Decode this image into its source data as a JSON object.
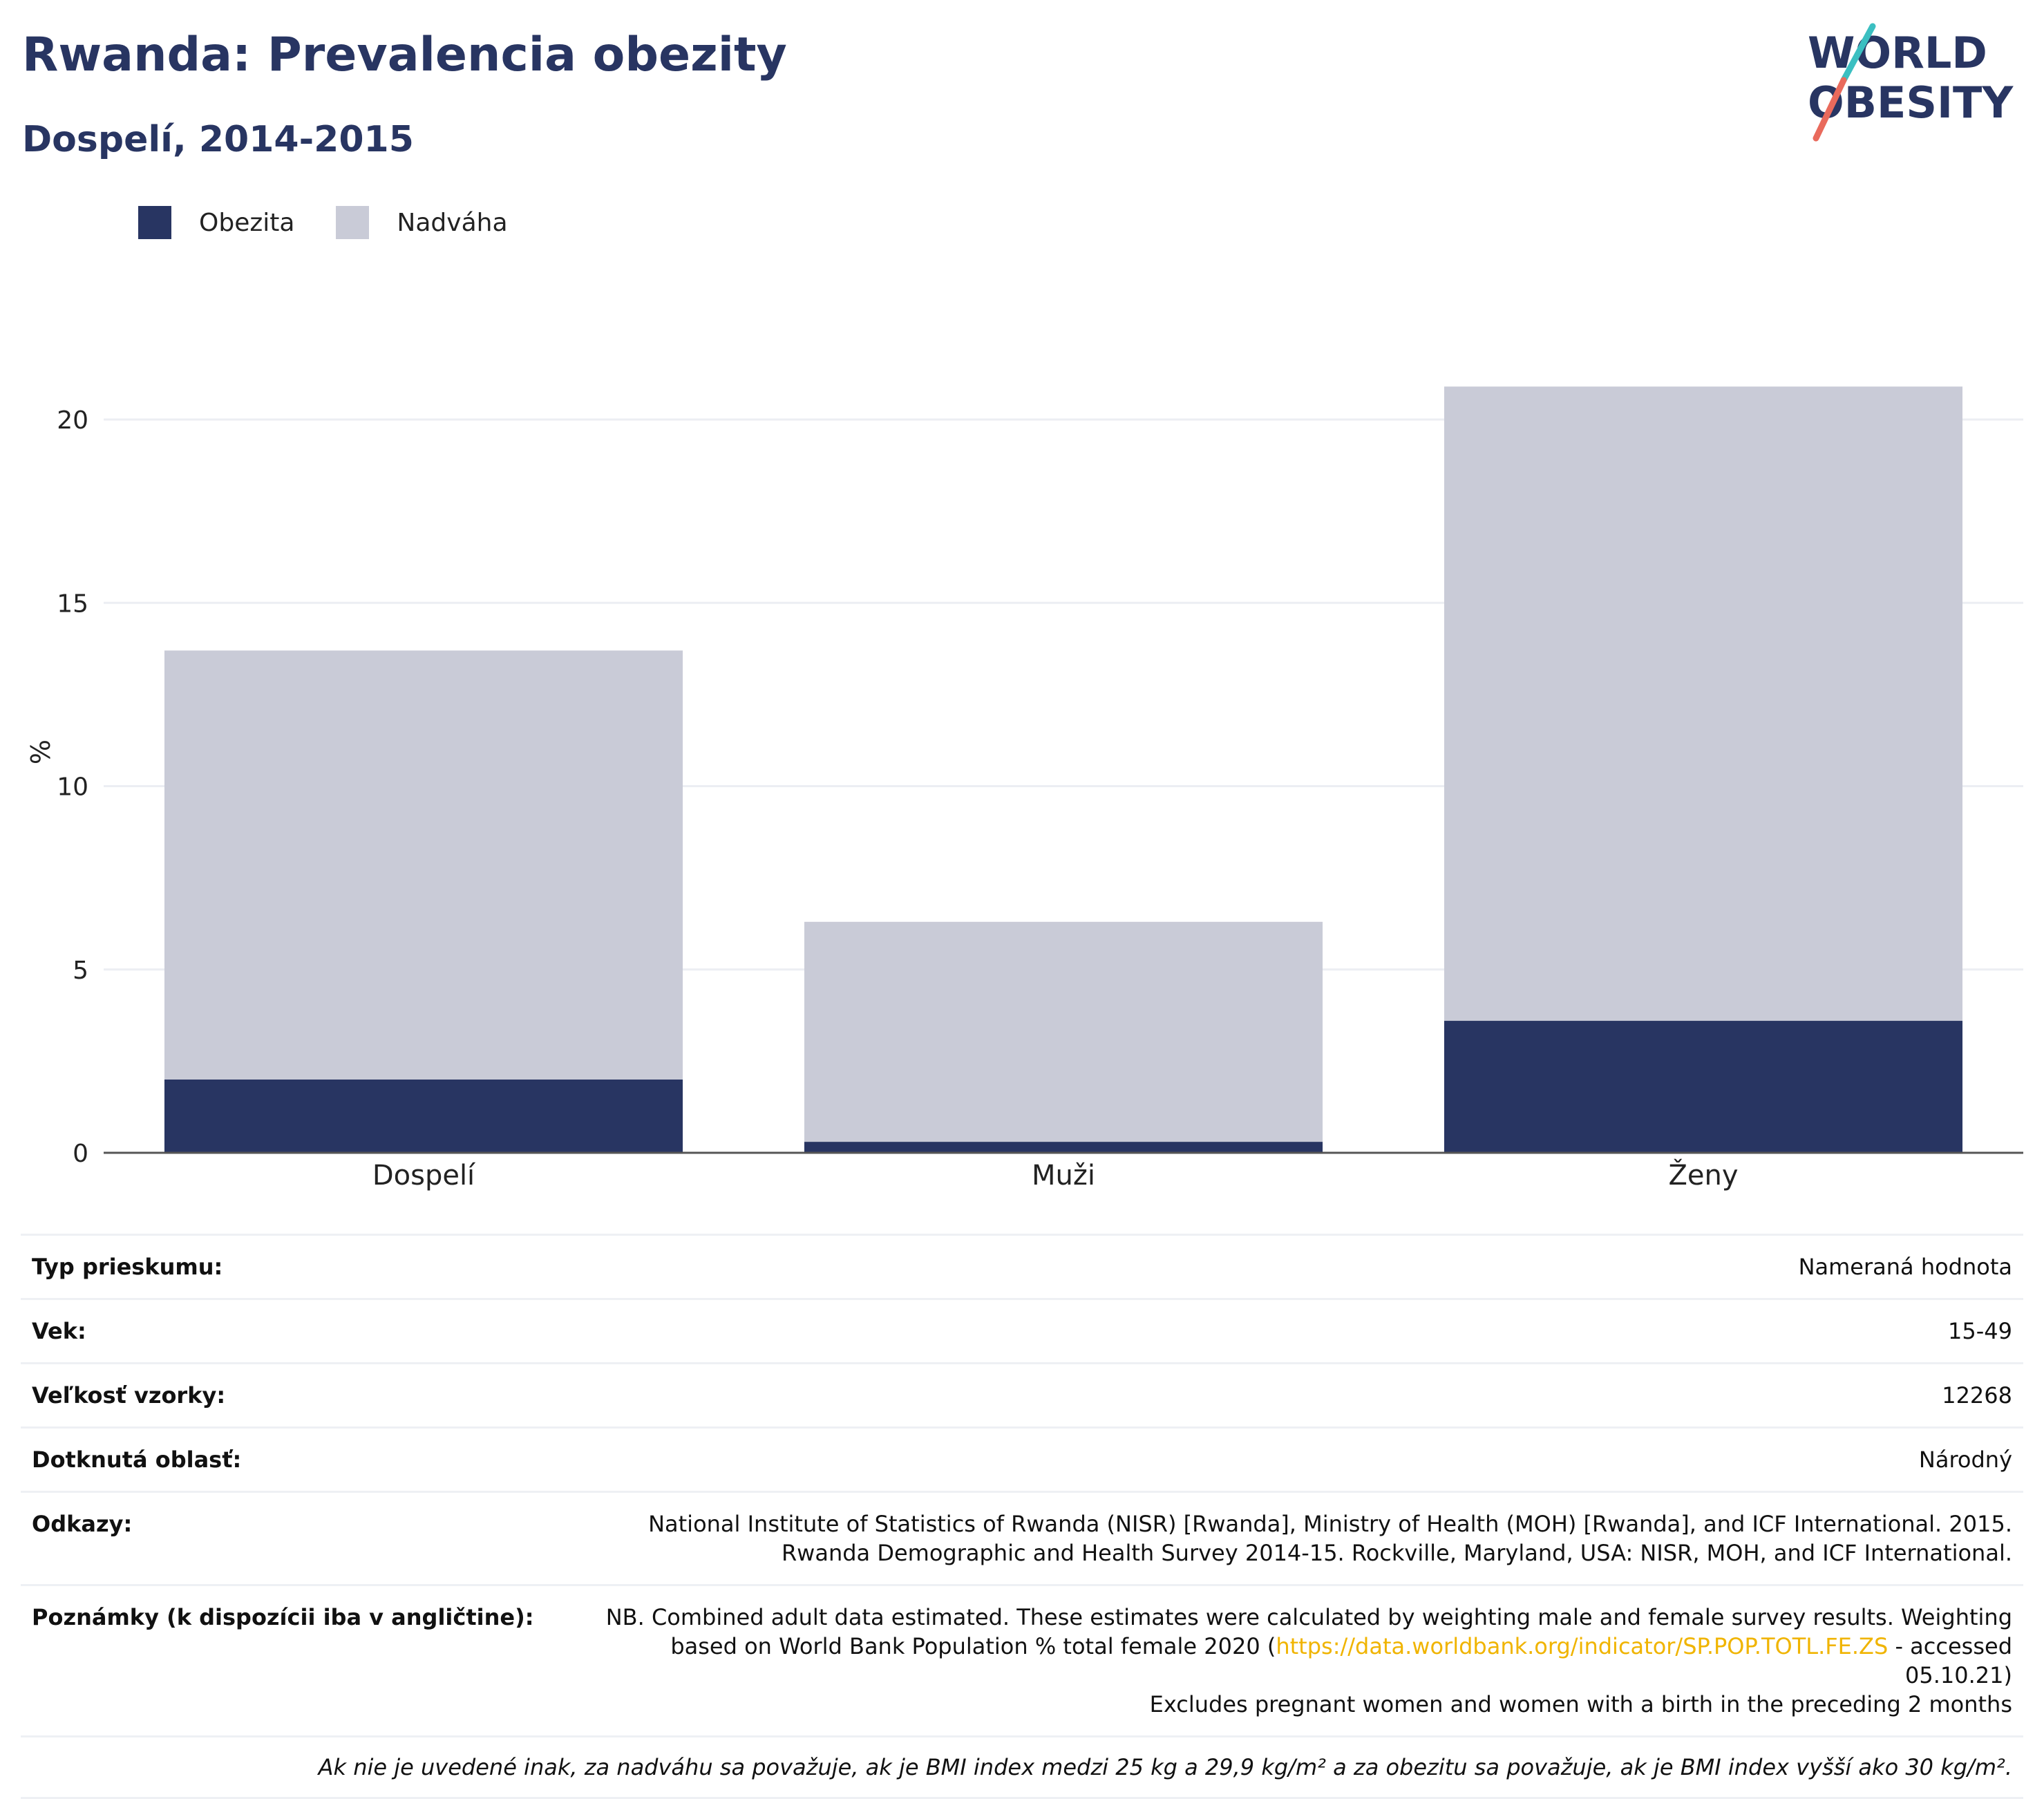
{
  "header": {
    "title": "Rwanda: Prevalencia obezity",
    "subtitle": "Dospelí, 2014-2015",
    "logo_line1": "WORLD",
    "logo_line2": "OBESITY"
  },
  "colors": {
    "obesity": "#283562",
    "overweight": "#c9cbd7",
    "title": "#283562",
    "link": "#f0b400"
  },
  "chart_data": {
    "type": "bar",
    "stacked": true,
    "categories": [
      "Dospelí",
      "Muži",
      "Ženy"
    ],
    "series": [
      {
        "name": "Obezita",
        "values": [
          2.0,
          0.3,
          3.6
        ]
      },
      {
        "name": "Nadváha",
        "values": [
          11.7,
          6.0,
          17.3
        ]
      }
    ],
    "ylabel": "%",
    "ylim": [
      0,
      21
    ],
    "yticks": [
      0,
      5,
      10,
      15,
      20
    ],
    "grid": true,
    "legend": "top-left"
  },
  "info": {
    "survey_type_label": "Typ prieskumu:",
    "survey_type_value": "Nameraná hodnota",
    "age_label": "Vek:",
    "age_value": "15-49",
    "sample_label": "Veľkosť vzorky:",
    "sample_value": "12268",
    "area_label": "Dotknutá oblasť:",
    "area_value": "Národný",
    "refs_label": "Odkazy:",
    "refs_value": "National Institute of Statistics of Rwanda (NISR) [Rwanda], Ministry of Health (MOH) [Rwanda], and ICF International. 2015. Rwanda Demographic and Health Survey 2014-15. Rockville, Maryland, USA: NISR, MOH, and ICF International.",
    "notes_label": "Poznámky (k dispozícii iba v angličtine):",
    "notes_part1": "NB. Combined adult data estimated. These estimates were calculated by weighting male and female survey results. Weighting based on World Bank Population % total female 2020 (",
    "notes_link": "https://data.worldbank.org/indicator/SP.POP.TOTL.FE.ZS",
    "notes_part2": " - accessed 05.10.21)",
    "notes_line3": "Excludes pregnant women and women with a birth in the preceding 2 months",
    "footnote": "Ak nie je uvedené inak, za nadváhu sa považuje, ak je BMI index medzi 25 kg a 29,9 kg/m² a za obezitu sa považuje, ak je BMI index vyšší ako 30 kg/m²."
  }
}
